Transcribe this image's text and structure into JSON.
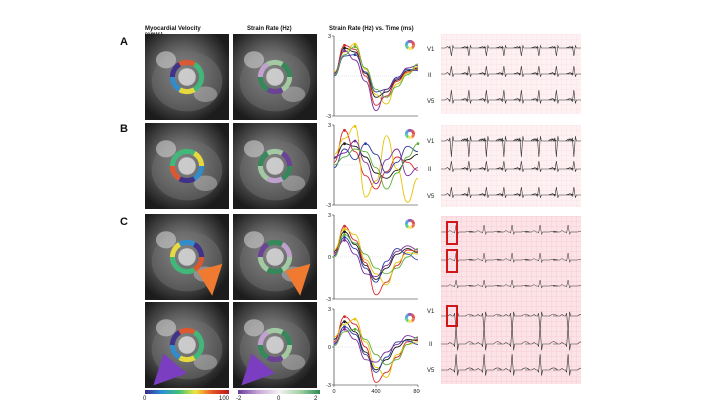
{
  "headers": {
    "velocity": "Myocardial Velocity",
    "velocity_units": "(cm/s)",
    "strain": "Strain Rate (Hz)",
    "plot": "Strain Rate (Hz) vs. Time (ms)"
  },
  "row_labels": [
    "A",
    "B",
    "C"
  ],
  "ecg_leads": {
    "a": [
      "V1",
      "II",
      "V5"
    ],
    "b": [
      "V1",
      "II",
      "V5"
    ],
    "c_bottom": [
      "V1",
      "II",
      "V5"
    ]
  },
  "colorbars": {
    "velocity": {
      "min": "0",
      "max": "100",
      "colors": [
        "#3b2a8c",
        "#2b8fd6",
        "#3cc07a",
        "#f2e43a",
        "#e8552a",
        "#b81818"
      ]
    },
    "strain": {
      "labels": [
        "-2",
        "0",
        "2"
      ],
      "colors": [
        "#6a3d9a",
        "#c9a6d8",
        "#f2f2f2",
        "#a7d3a7",
        "#2e8b57"
      ]
    }
  },
  "colors": {
    "series": [
      "#1a1a1a",
      "#d62728",
      "#e6c200",
      "#2a3d9f",
      "#7a2a9a",
      "#5fae3a"
    ],
    "arrow_orange": "#ef7a30",
    "arrow_purple": "#7c3ec0",
    "highlight_red": "#d01818",
    "ecg_grid": "#f4c2cb"
  },
  "chart_data": [
    {
      "type": "line",
      "panel": "A",
      "xlim": [
        0,
        800
      ],
      "ylim": [
        -3,
        3
      ],
      "y_ticks": [
        "3",
        "-3"
      ],
      "x": [
        0,
        100,
        200,
        300,
        400,
        500,
        600,
        700,
        800
      ],
      "series": [
        {
          "values": [
            0.2,
            2.1,
            1.8,
            0.2,
            -1.6,
            -1.2,
            -0.3,
            0.4,
            0.6
          ]
        },
        {
          "values": [
            0.1,
            2.3,
            2.0,
            0.0,
            -2.2,
            -1.5,
            -0.4,
            0.3,
            0.5
          ]
        },
        {
          "values": [
            0.3,
            1.8,
            2.4,
            0.5,
            -1.4,
            -2.1,
            -0.6,
            0.2,
            0.7
          ]
        },
        {
          "values": [
            0.0,
            1.5,
            1.6,
            0.3,
            -1.2,
            -1.0,
            -0.1,
            0.5,
            0.4
          ]
        },
        {
          "values": [
            0.2,
            1.9,
            1.2,
            -0.4,
            -2.6,
            -1.0,
            -0.2,
            0.6,
            0.8
          ]
        },
        {
          "values": [
            0.1,
            1.6,
            2.2,
            0.6,
            -1.0,
            -1.6,
            -0.8,
            0.1,
            0.9
          ]
        }
      ]
    },
    {
      "type": "line",
      "panel": "B",
      "xlim": [
        0,
        800
      ],
      "ylim": [
        -3,
        3
      ],
      "y_ticks": [
        "3",
        "-3"
      ],
      "x": [
        0,
        100,
        200,
        300,
        400,
        500,
        600,
        700,
        800
      ],
      "series": [
        {
          "values": [
            0.5,
            1.6,
            1.4,
            0.6,
            -0.6,
            -1.0,
            -0.4,
            0.4,
            0.8
          ]
        },
        {
          "values": [
            0.2,
            2.6,
            1.0,
            -0.8,
            -1.8,
            -0.5,
            0.6,
            0.2,
            -0.4
          ]
        },
        {
          "values": [
            0.8,
            2.0,
            2.9,
            -2.4,
            -1.2,
            2.2,
            -0.3,
            -2.8,
            -1.0
          ]
        },
        {
          "values": [
            -0.2,
            1.2,
            0.4,
            1.6,
            0.8,
            -0.6,
            0.2,
            1.4,
            1.0
          ]
        },
        {
          "values": [
            0.6,
            0.9,
            1.8,
            0.2,
            -1.4,
            0.4,
            1.2,
            -0.8,
            -0.2
          ]
        },
        {
          "values": [
            0.0,
            0.6,
            1.2,
            1.0,
            -0.2,
            -1.8,
            -0.6,
            0.6,
            1.6
          ]
        }
      ]
    },
    {
      "type": "line",
      "panel": "C-top",
      "xlim": [
        0,
        800
      ],
      "ylim": [
        -3,
        3
      ],
      "y_ticks": [
        "3",
        "0",
        "-3"
      ],
      "x": [
        0,
        100,
        200,
        300,
        400,
        500,
        600,
        700,
        800
      ],
      "series": [
        {
          "values": [
            0.4,
            1.8,
            0.9,
            -0.6,
            -1.6,
            -0.8,
            0.2,
            0.6,
            0.3
          ]
        },
        {
          "values": [
            0.2,
            2.2,
            1.2,
            -0.4,
            -2.7,
            -1.8,
            -0.6,
            0.5,
            0.4
          ]
        },
        {
          "values": [
            0.5,
            2.0,
            1.6,
            -0.2,
            -1.2,
            -2.0,
            -0.4,
            0.3,
            0.2
          ]
        },
        {
          "values": [
            0.1,
            1.4,
            0.6,
            -0.8,
            -1.8,
            -0.3,
            0.6,
            0.2,
            -0.2
          ]
        },
        {
          "values": [
            0.3,
            1.2,
            0.2,
            -1.2,
            -1.4,
            -0.6,
            0.4,
            0.8,
            0.5
          ]
        },
        {
          "values": [
            0.0,
            1.6,
            1.0,
            0.2,
            -0.8,
            -1.2,
            -0.8,
            0.0,
            0.6
          ]
        }
      ]
    },
    {
      "type": "line",
      "panel": "C-bottom",
      "xlim": [
        0,
        800
      ],
      "ylim": [
        -3,
        3
      ],
      "y_ticks": [
        "3",
        "0",
        "-3"
      ],
      "x_ticks": [
        "0",
        "400",
        "800"
      ],
      "x": [
        0,
        100,
        200,
        300,
        400,
        500,
        600,
        700,
        800
      ],
      "series": [
        {
          "values": [
            0.6,
            2.0,
            1.2,
            -0.4,
            -1.8,
            -1.0,
            0.0,
            0.6,
            0.5
          ]
        },
        {
          "values": [
            0.4,
            2.4,
            1.8,
            0.0,
            -2.8,
            -2.0,
            -0.8,
            0.4,
            0.6
          ]
        },
        {
          "values": [
            0.8,
            1.8,
            2.2,
            0.4,
            -1.6,
            -2.4,
            -0.6,
            0.2,
            0.4
          ]
        },
        {
          "values": [
            0.2,
            1.6,
            1.0,
            -0.6,
            -2.0,
            -0.8,
            0.4,
            0.5,
            0.2
          ]
        },
        {
          "values": [
            0.3,
            1.4,
            0.6,
            -1.0,
            -1.2,
            -0.4,
            0.2,
            0.9,
            0.7
          ]
        },
        {
          "values": [
            0.1,
            1.2,
            1.4,
            0.6,
            -0.6,
            -1.4,
            -1.0,
            0.2,
            0.8
          ]
        }
      ]
    }
  ]
}
